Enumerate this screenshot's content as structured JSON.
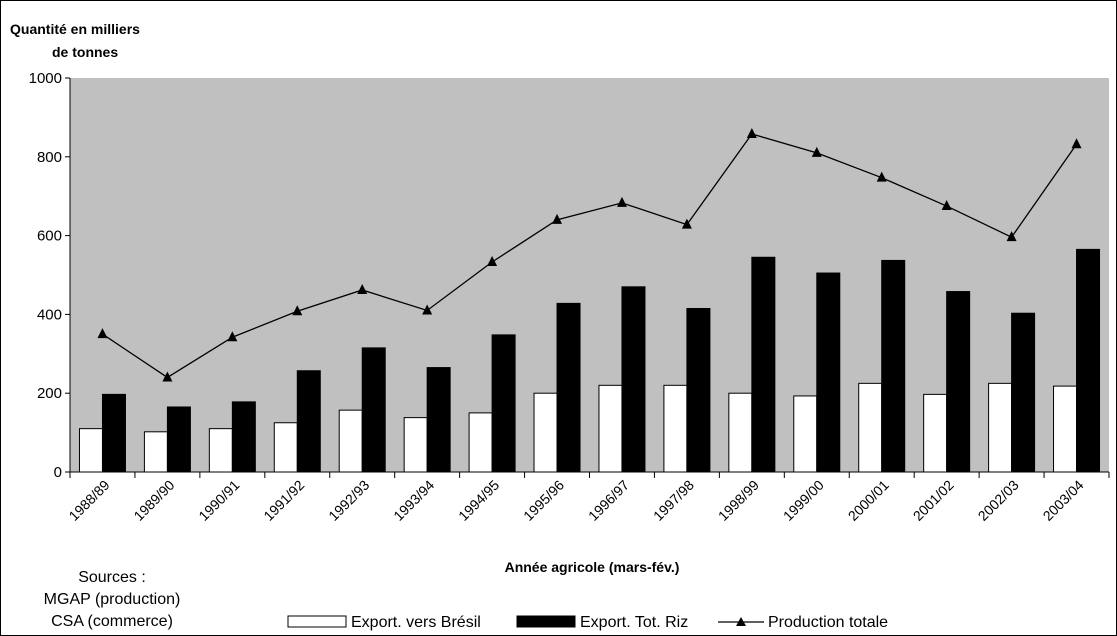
{
  "chart_data": {
    "type": "bar",
    "ylabel_line1": "Quantité en milliers",
    "ylabel_line2": "de tonnes",
    "xlabel": "Année agricole (mars-fév.)",
    "ylim": [
      0,
      1000
    ],
    "yticks": [
      0,
      200,
      400,
      600,
      800,
      1000
    ],
    "grid": false,
    "legend_position": "bottom",
    "categories": [
      "1988/89",
      "1989/90",
      "1990/91",
      "1991/92",
      "1992/93",
      "1993/94",
      "1994/95",
      "1995/96",
      "1996/97",
      "1997/98",
      "1998/99",
      "1999/00",
      "2000/01",
      "2001/02",
      "2002/03",
      "2003/04"
    ],
    "series": [
      {
        "name": "Export. vers Brésil",
        "kind": "bar",
        "color": "#ffffff",
        "values": [
          110,
          102,
          110,
          125,
          157,
          138,
          150,
          200,
          220,
          220,
          200,
          193,
          225,
          197,
          225,
          218
        ]
      },
      {
        "name": "Export. Tot. Riz",
        "kind": "bar",
        "color": "#000000",
        "values": [
          197,
          165,
          178,
          257,
          315,
          265,
          348,
          428,
          470,
          415,
          545,
          505,
          537,
          458,
          403,
          565
        ]
      },
      {
        "name": "Production totale",
        "kind": "line",
        "color": "#000000",
        "values": [
          350,
          240,
          342,
          408,
          462,
          410,
          533,
          640,
          683,
          628,
          858,
          810,
          747,
          675,
          596,
          832
        ]
      }
    ],
    "plot_background": "#c0c0c0",
    "sources": [
      "Sources :",
      "MGAP (production)",
      "CSA (commerce)"
    ]
  }
}
